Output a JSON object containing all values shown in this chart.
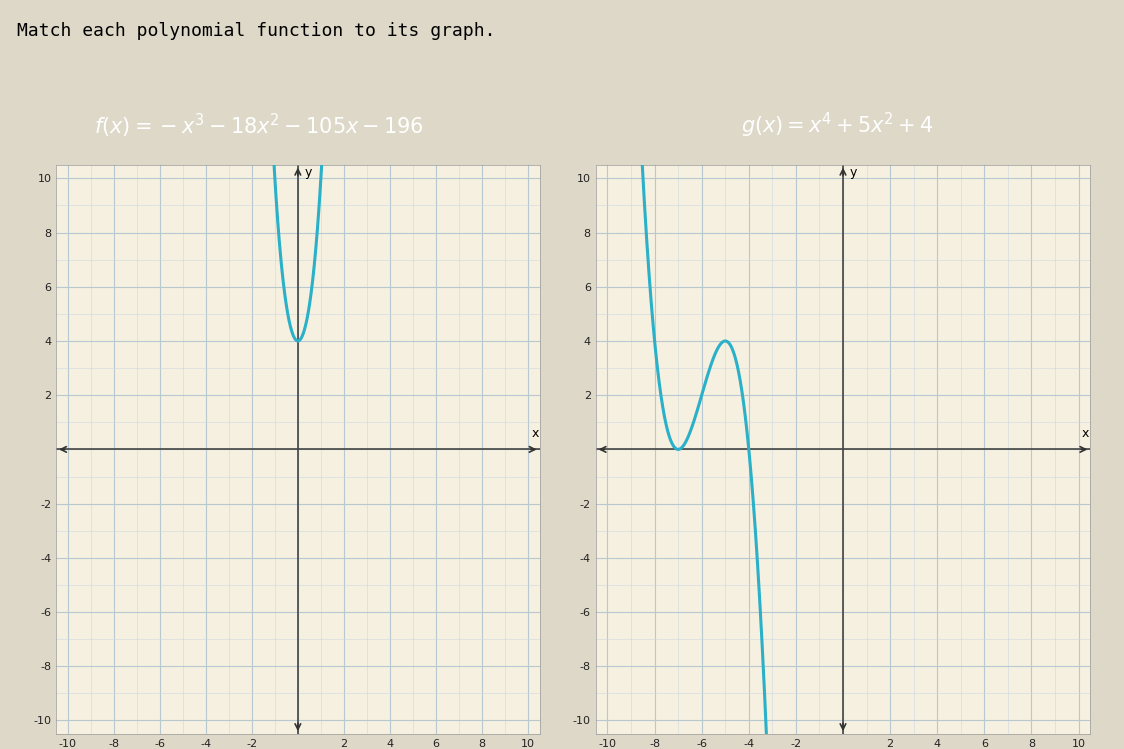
{
  "title": "Match each polynomial function to its graph.",
  "xlim": [
    -10.5,
    10.5
  ],
  "ylim": [
    -10.5,
    10.5
  ],
  "curve_color": "#2ab0c8",
  "outer_bg": "#ddd8c8",
  "panel_outer_bg": "#c8d8b0",
  "panel_bg": "#f5f0e0",
  "header_bg": "#2244bb",
  "grid_major_color": "#b8c8d0",
  "grid_minor_color": "#ccd8e0",
  "tick_fontsize": 8,
  "title_fontsize": 13,
  "label_fontsize": 15,
  "curve_lw": 2.2
}
